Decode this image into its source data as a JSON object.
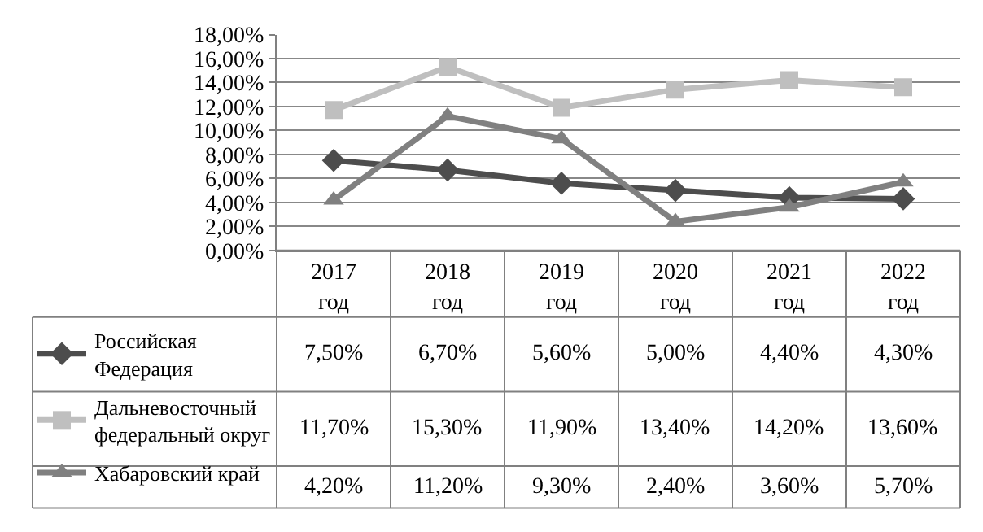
{
  "chart_data": {
    "type": "line",
    "categories": [
      "2017 год",
      "2018 год",
      "2019 год",
      "2020 год",
      "2021 год",
      "2022 год"
    ],
    "ylim": [
      0,
      18
    ],
    "yticks": [
      {
        "value": 0,
        "label": "0,00%"
      },
      {
        "value": 2,
        "label": "2,00%"
      },
      {
        "value": 4,
        "label": "4,00%"
      },
      {
        "value": 6,
        "label": "6,00%"
      },
      {
        "value": 8,
        "label": "8,00%"
      },
      {
        "value": 10,
        "label": "10,00%"
      },
      {
        "value": 12,
        "label": "12,00%"
      },
      {
        "value": 14,
        "label": "14,00%"
      },
      {
        "value": 16,
        "label": "16,00%"
      },
      {
        "value": 18,
        "label": "18,00%"
      }
    ],
    "grid": "y",
    "legend": "bottom left",
    "series": [
      {
        "name": "Российская Федерация",
        "color": "#4d4d4d",
        "marker": "diamond",
        "values": [
          7.5,
          6.7,
          5.6,
          5.0,
          4.4,
          4.3
        ],
        "value_labels": [
          "7,50%",
          "6,70%",
          "5,60%",
          "5,00%",
          "4,40%",
          "4,30%"
        ]
      },
      {
        "name": "Дальневосточный федеральный округ",
        "color": "#bfbfbf",
        "marker": "square",
        "values": [
          11.7,
          15.3,
          11.9,
          13.4,
          14.2,
          13.6
        ],
        "value_labels": [
          "11,70%",
          "15,30%",
          "11,90%",
          "13,40%",
          "14,20%",
          "13,60%"
        ]
      },
      {
        "name": "Хабаровский край",
        "color": "#808080",
        "marker": "triangle",
        "values": [
          4.2,
          11.2,
          9.3,
          2.4,
          3.6,
          5.7
        ],
        "value_labels": [
          "4,20%",
          "11,20%",
          "9,30%",
          "2,40%",
          "3,60%",
          "5,70%"
        ]
      }
    ]
  }
}
